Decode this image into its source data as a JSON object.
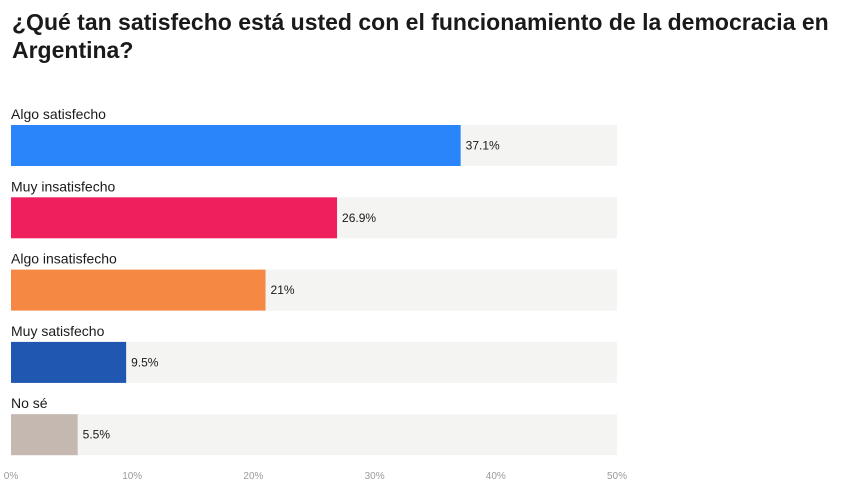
{
  "chart_data": {
    "type": "bar",
    "orientation": "horizontal",
    "title": "¿Qué tan satisfecho está usted con el funcionamiento de la democracia en Argentina?",
    "categories": [
      "Algo satisfecho",
      "Muy insatisfecho",
      "Algo insatisfecho",
      "Muy satisfecho",
      "No sé"
    ],
    "values": [
      37.1,
      26.9,
      21,
      9.5,
      5.5
    ],
    "value_labels": [
      "37.1%",
      "26.9%",
      "21%",
      "9.5%",
      "5.5%"
    ],
    "colors": [
      "#2a85fa",
      "#ee1f5c",
      "#f58842",
      "#1f57b1",
      "#c4b8b0"
    ],
    "track_color": "#f4f4f2",
    "xlim": [
      0,
      50
    ],
    "xticks": [
      0,
      10,
      20,
      30,
      40,
      50
    ],
    "xtick_labels": [
      "0%",
      "10%",
      "20%",
      "30%",
      "40%",
      "50%"
    ],
    "grid": false,
    "legend": "none"
  }
}
